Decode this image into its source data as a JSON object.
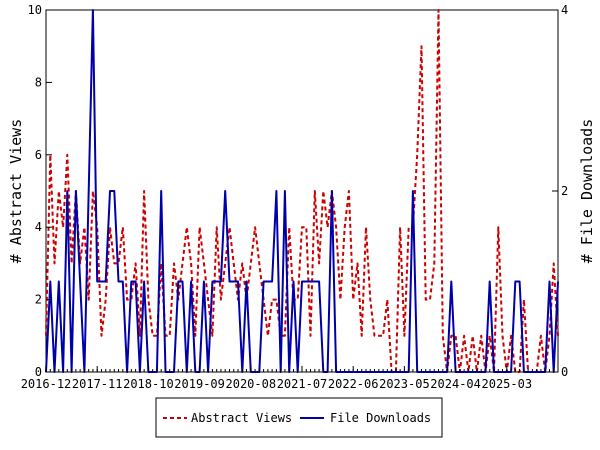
{
  "chart_data": {
    "type": "line",
    "ylabel_left": "# Abstract Views",
    "ylabel_right": "# File Downloads",
    "ylim_left": [
      0,
      10
    ],
    "ylim_right": [
      0,
      4
    ],
    "yticks_left": [
      "0",
      "2",
      "4",
      "6",
      "8",
      "10"
    ],
    "yticks_right": [
      "0",
      "2",
      "4"
    ],
    "xtick_labels": [
      "2016-12",
      "2017-11",
      "2018-10",
      "2019-09",
      "2020-08",
      "2021-07",
      "2022-06",
      "2023-05",
      "2024-04",
      "2025-03"
    ],
    "legend_position": "bottom",
    "grid": false,
    "series": [
      {
        "name": "Abstract Views",
        "axis": "left",
        "color": "#cc0000",
        "style": "dashed",
        "values": [
          1,
          6,
          3,
          5,
          4,
          6,
          3,
          5,
          3,
          4,
          2,
          5,
          4,
          1,
          2,
          4,
          3,
          3,
          4,
          2,
          2,
          3,
          1,
          5,
          2,
          1,
          1,
          3,
          1,
          1,
          3,
          2,
          3,
          4,
          3,
          1,
          4,
          3,
          2,
          1,
          4,
          2,
          3,
          4,
          3,
          2,
          3,
          2,
          3,
          4,
          3,
          2,
          1,
          2,
          2,
          1,
          1,
          4,
          2,
          2,
          4,
          4,
          1,
          5,
          3,
          5,
          4,
          5,
          4,
          2,
          4,
          5,
          2,
          3,
          1,
          4,
          2,
          1,
          1,
          1,
          2,
          0,
          0,
          4,
          1,
          4,
          4,
          6,
          9,
          2,
          2,
          3,
          10,
          1,
          0,
          1,
          1,
          0,
          1,
          0,
          1,
          0,
          1,
          0,
          1,
          0,
          4,
          1,
          0,
          1,
          0,
          0,
          2,
          0,
          0,
          0,
          1,
          0,
          1,
          3,
          1
        ]
      },
      {
        "name": "File Downloads",
        "axis": "right",
        "color": "#0000aa",
        "style": "solid",
        "values": [
          0,
          1,
          0,
          1,
          0,
          2,
          0,
          2,
          1,
          0,
          2,
          4,
          1,
          1,
          1,
          2,
          2,
          1,
          1,
          0,
          1,
          1,
          0,
          1,
          0,
          0,
          0,
          2,
          0,
          0,
          0,
          1,
          1,
          0,
          1,
          0,
          0,
          1,
          0,
          1,
          1,
          1,
          2,
          1,
          1,
          1,
          0,
          1,
          0,
          0,
          0,
          1,
          1,
          1,
          2,
          0,
          2,
          0,
          1,
          0,
          1,
          1,
          1,
          1,
          1,
          0,
          0,
          2,
          0,
          0,
          0,
          0,
          0,
          0,
          0,
          0,
          0,
          0,
          0,
          0,
          0,
          0,
          0,
          0,
          0,
          0,
          2,
          0,
          0,
          0,
          0,
          0,
          0,
          0,
          0,
          1,
          0,
          0,
          0,
          0,
          0,
          0,
          0,
          0,
          1,
          0,
          0,
          0,
          0,
          0,
          1,
          1,
          0,
          0,
          0,
          0,
          0,
          0,
          1,
          0,
          1
        ]
      }
    ]
  }
}
